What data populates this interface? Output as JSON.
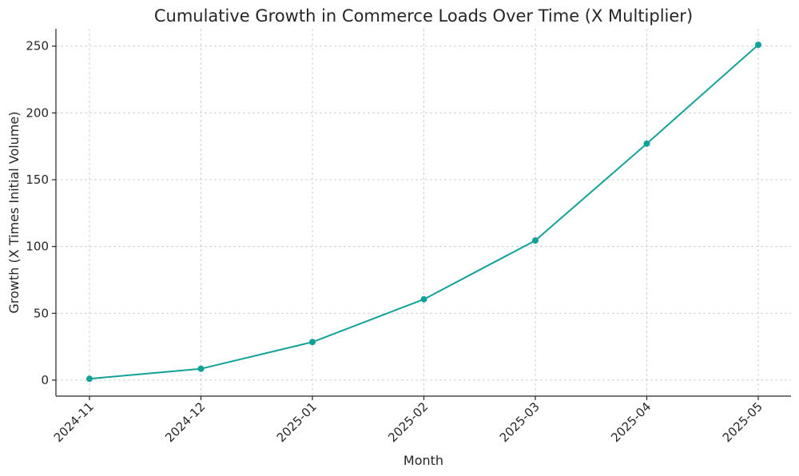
{
  "chart_data": {
    "type": "line",
    "title": "Cumulative Growth in Commerce Loads Over Time (X Multiplier)",
    "xlabel": "Month",
    "ylabel": "Growth (X Times Initial Volume)",
    "categories": [
      "2024-11",
      "2024-12",
      "2025-01",
      "2025-02",
      "2025-03",
      "2025-04",
      "2025-05"
    ],
    "series": [
      {
        "values": [
          1,
          8.5,
          28.5,
          60.5,
          104.5,
          177,
          251
        ]
      }
    ],
    "ylim": [
      -12,
      263
    ],
    "yticks": [
      0,
      50,
      100,
      150,
      200,
      250
    ],
    "grid": true,
    "color": "#12a197"
  }
}
